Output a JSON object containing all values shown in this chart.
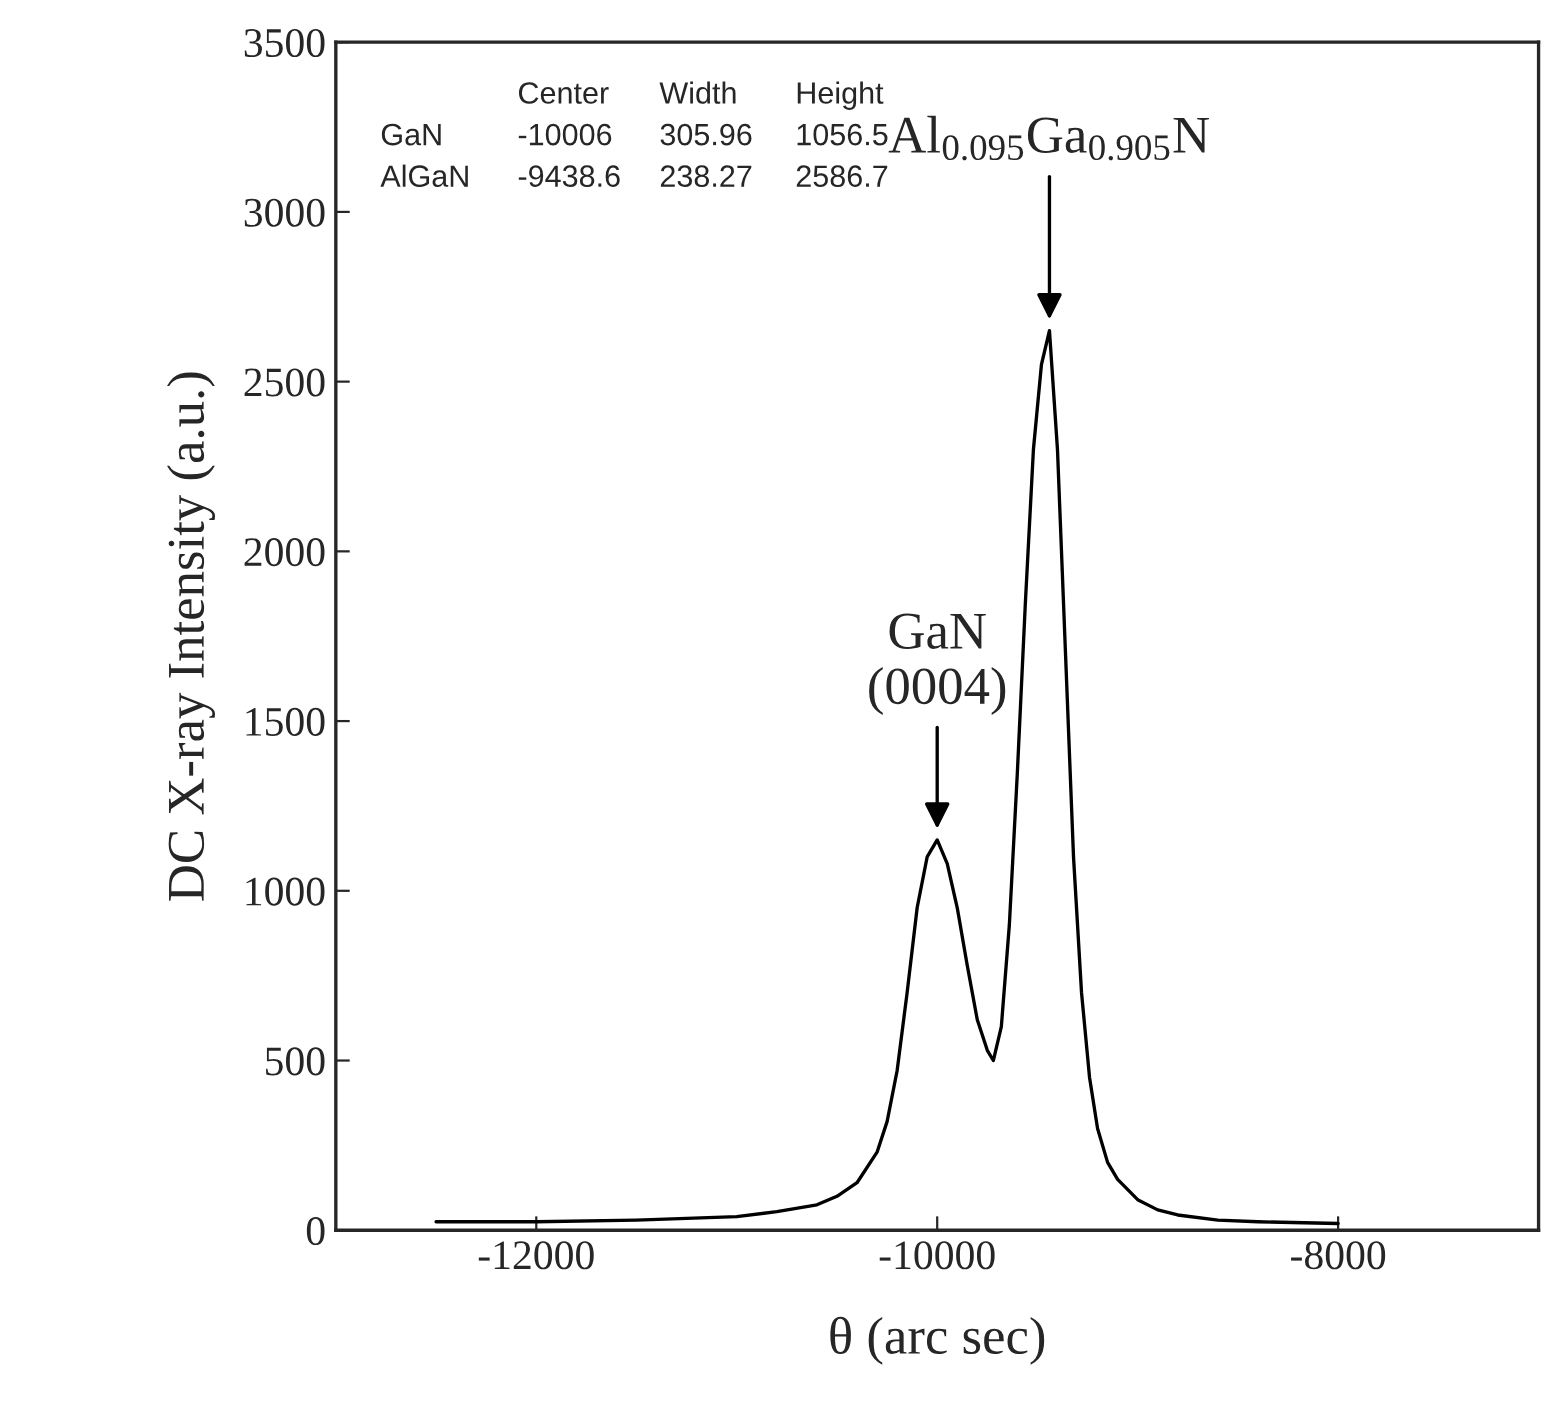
{
  "chart_data": {
    "type": "line",
    "xlabel": "θ (arc sec)",
    "ylabel": "DC X-ray Intensity (a.u.)",
    "x": [
      -12500,
      -12000,
      -11500,
      -11000,
      -10800,
      -10600,
      -10500,
      -10400,
      -10300,
      -10250,
      -10200,
      -10150,
      -10100,
      -10050,
      -10000,
      -9950,
      -9900,
      -9850,
      -9800,
      -9750,
      -9720,
      -9680,
      -9640,
      -9600,
      -9560,
      -9520,
      -9480,
      -9440,
      -9400,
      -9360,
      -9320,
      -9280,
      -9240,
      -9200,
      -9150,
      -9100,
      -9000,
      -8900,
      -8800,
      -8600,
      -8400,
      -8000
    ],
    "series": [
      {
        "color": "#000000",
        "values": [
          25,
          25,
          30,
          40,
          55,
          75,
          100,
          140,
          230,
          320,
          470,
          700,
          950,
          1100,
          1150,
          1080,
          950,
          780,
          620,
          530,
          500,
          600,
          900,
          1350,
          1850,
          2300,
          2550,
          2650,
          2300,
          1700,
          1100,
          700,
          450,
          300,
          200,
          150,
          90,
          60,
          45,
          30,
          25,
          20
        ]
      }
    ],
    "xlim": [
      -13000,
      -7000
    ],
    "ylim": [
      0,
      3500
    ],
    "xticks": [
      -12000,
      -10000,
      -8000
    ],
    "yticks": [
      0,
      500,
      1000,
      1500,
      2000,
      2500,
      3000,
      3500
    ],
    "grid": false,
    "marker": "none",
    "line_style": "solid",
    "annotations": [
      {
        "text": "Al$_{0.095}$Ga$_{0.905}$N",
        "x": -9440,
        "y": 2650
      },
      {
        "text": "GaN\n(0004)",
        "x": -10000,
        "y": 1150
      },
      "Center  Width  Height",
      "GaN  -10006  305.96  1056.5",
      "AlGaN  -9438.6  238.27  2586.7"
    ]
  }
}
